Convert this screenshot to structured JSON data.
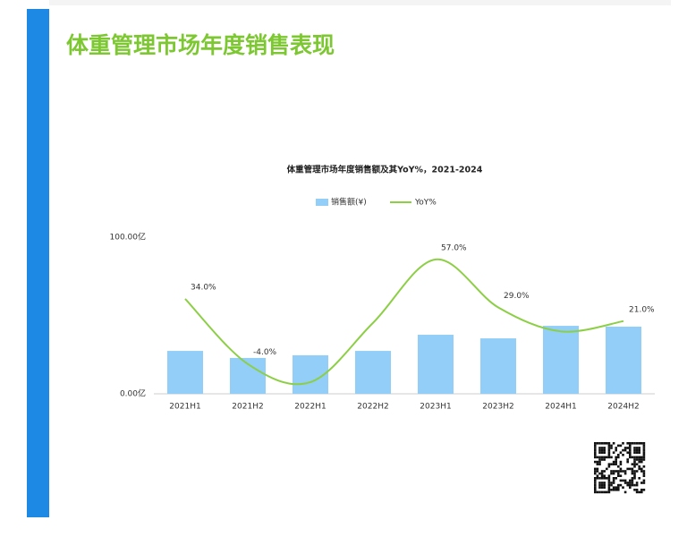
{
  "header": {
    "title": "体重管理市场年度销售表现"
  },
  "chart_data": {
    "type": "bar",
    "title": "体重管理市场年度销售额及其YoY%，2021-2024",
    "categories": [
      "2021H1",
      "2021H2",
      "2022H1",
      "2022H2",
      "2023H1",
      "2023H2",
      "2024H1",
      "2024H2"
    ],
    "series": [
      {
        "name": "销售额(¥)",
        "type": "bar",
        "color": "#92cef8",
        "values": [
          27.4,
          22.9,
          24.6,
          27.4,
          37.7,
          35.4,
          43.4,
          42.9
        ]
      },
      {
        "name": "YoY%",
        "type": "line",
        "axis": "y2",
        "color": "#8ccf45",
        "values": [
          34,
          -4,
          -14.6,
          20,
          57,
          29,
          15,
          21
        ],
        "value_labels": [
          "34.0%",
          "-4.0%",
          null,
          null,
          "57.0%",
          "29.0%",
          null,
          "21.0%"
        ]
      }
    ],
    "ylim": [
      0,
      100
    ],
    "yticks": [
      {
        "value": 0,
        "label": "0.00亿"
      },
      {
        "value": 100,
        "label": "100.00亿"
      }
    ],
    "y2lim": [
      -21.4,
      70
    ],
    "legend": "top"
  }
}
